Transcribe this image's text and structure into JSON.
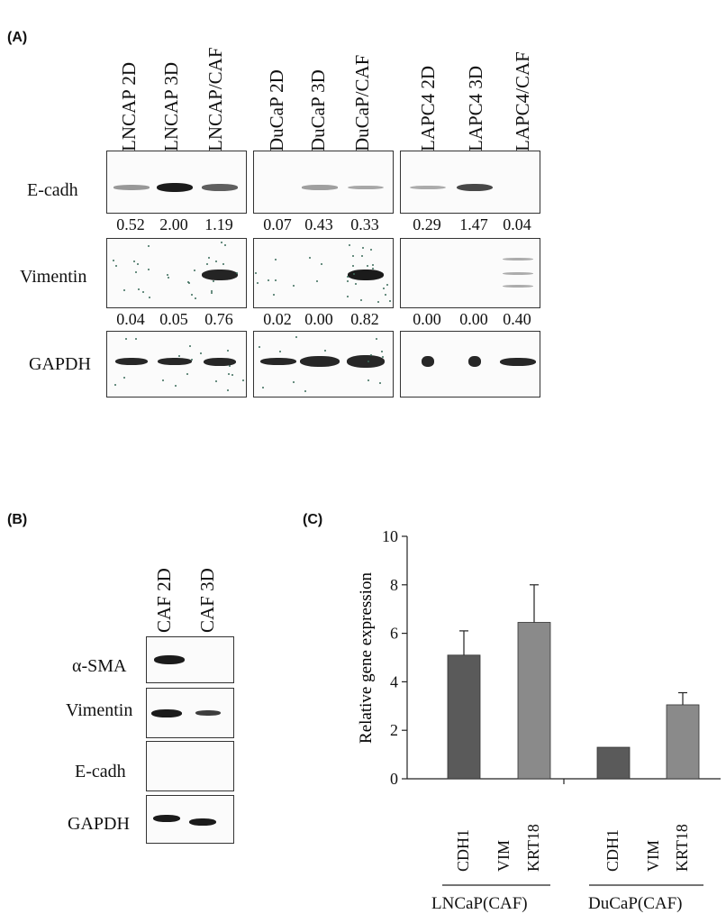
{
  "panel_a": {
    "label": "(A)",
    "lanes": [
      "LNCAP 2D",
      "LNCAP 3D",
      "LNCAP/CAF",
      "DuCaP 2D",
      "DuCaP 3D",
      "DuCaP/CAF",
      "LAPC4 2D",
      "LAPC4 3D",
      "LAPC4/CAF"
    ],
    "rows": [
      "E-cadh",
      "Vimentin",
      "GAPDH"
    ],
    "ecadh_values": [
      "0.52",
      "2.00",
      "1.19",
      "0.07",
      "0.43",
      "0.33",
      "0.29",
      "1.47",
      "0.04"
    ],
    "vimentin_values": [
      "0.04",
      "0.05",
      "0.76",
      "0.02",
      "0.00",
      "0.82",
      "0.00",
      "0.00",
      "0.40"
    ],
    "ecadh_levels": [
      0.52,
      2.0,
      1.19,
      0.07,
      0.43,
      0.33,
      0.29,
      1.47,
      0.04
    ],
    "vimentin_levels": [
      0.04,
      0.05,
      0.76,
      0.02,
      0.0,
      0.82,
      0.0,
      0.0,
      0.4
    ]
  },
  "panel_b": {
    "label": "(B)",
    "lanes": [
      "CAF 2D",
      "CAF 3D"
    ],
    "rows": [
      "α-SMA",
      "Vimentin",
      "E-cadh",
      "GAPDH"
    ]
  },
  "panel_c": {
    "label": "(C)",
    "chart_data": {
      "type": "bar",
      "ylabel": "Relative  gene  expression",
      "ylim": [
        0,
        10
      ],
      "yticks": [
        "0",
        "2",
        "4",
        "6",
        "8",
        "10"
      ],
      "groups": [
        {
          "name": "LNCaP(CAF)",
          "categories": [
            "CDH1",
            "VIM",
            "KRT18"
          ],
          "values": [
            5.1,
            null,
            6.45
          ],
          "errors": [
            1.0,
            null,
            1.55
          ]
        },
        {
          "name": "DuCaP(CAF)",
          "categories": [
            "CDH1",
            "VIM",
            "KRT18"
          ],
          "values": [
            1.3,
            null,
            3.05
          ],
          "errors": [
            null,
            null,
            0.5
          ]
        }
      ],
      "colors": {
        "CDH1": "#5a5a5a",
        "KRT18": "#8a8a8a"
      }
    }
  }
}
